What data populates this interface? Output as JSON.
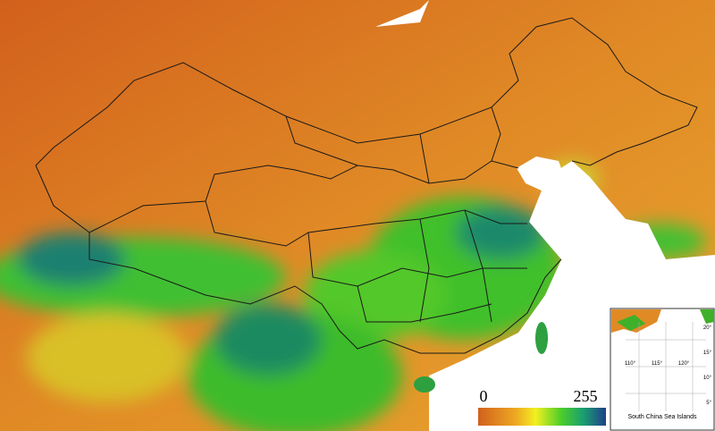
{
  "legend": {
    "min": 0,
    "max": 255
  },
  "inset": {
    "title": "South China Sea Islands",
    "longitudes": [
      "110°",
      "115°",
      "120°"
    ],
    "latitudes": [
      "20°",
      "15°",
      "10°",
      "5°"
    ]
  }
}
